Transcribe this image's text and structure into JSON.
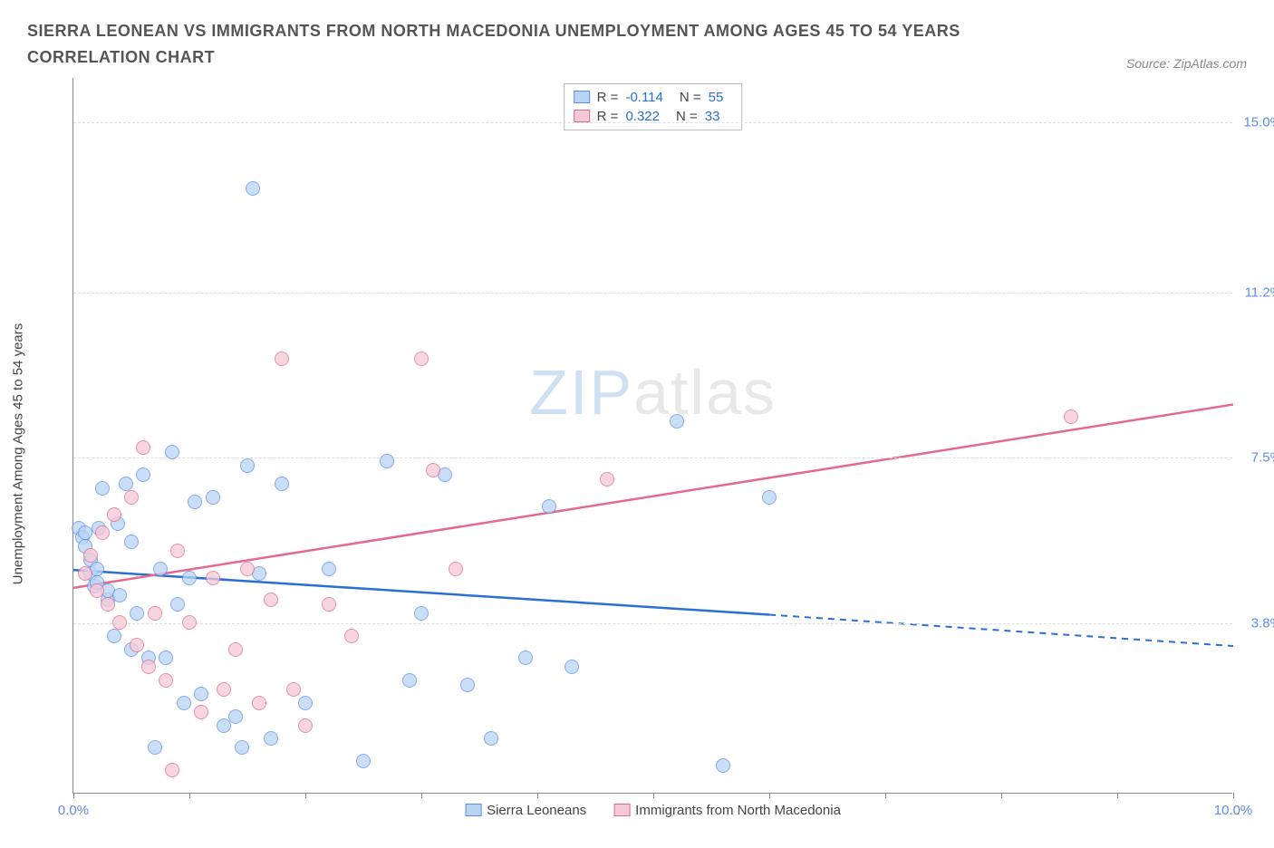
{
  "title": "SIERRA LEONEAN VS IMMIGRANTS FROM NORTH MACEDONIA UNEMPLOYMENT AMONG AGES 45 TO 54 YEARS CORRELATION CHART",
  "source": "Source: ZipAtlas.com",
  "ylabel": "Unemployment Among Ages 45 to 54 years",
  "watermark": {
    "a": "ZIP",
    "b": "atlas"
  },
  "chart": {
    "type": "scatter",
    "xlim": [
      0,
      10
    ],
    "ylim": [
      0,
      16
    ],
    "x_ticks": [
      0,
      1,
      2,
      3,
      4,
      5,
      6,
      7,
      8,
      9,
      10
    ],
    "x_tick_labels": {
      "0": "0.0%",
      "10": "10.0%"
    },
    "y_ticks": [
      3.8,
      7.5,
      11.2,
      15.0
    ],
    "y_tick_labels": [
      "3.8%",
      "7.5%",
      "11.2%",
      "15.0%"
    ],
    "grid_color": "#dddddd",
    "axis_color": "#888888",
    "tick_label_color": "#5b8def",
    "background_color": "#ffffff",
    "series": [
      {
        "name": "Sierra Leoneans",
        "fill": "#b9d4f3",
        "stroke": "#5b8def",
        "R": "-0.114",
        "N": "55",
        "trend": {
          "x1": 0,
          "y1": 5.0,
          "x2": 6.0,
          "y2": 4.0,
          "ext_x2": 10.0,
          "ext_y2": 3.3,
          "color": "#2a6fd6",
          "dash_ext": true
        },
        "points": [
          [
            0.05,
            5.9
          ],
          [
            0.08,
            5.7
          ],
          [
            0.1,
            5.5
          ],
          [
            0.1,
            5.8
          ],
          [
            0.15,
            4.9
          ],
          [
            0.15,
            5.2
          ],
          [
            0.18,
            4.6
          ],
          [
            0.2,
            4.7
          ],
          [
            0.2,
            5.0
          ],
          [
            0.22,
            5.9
          ],
          [
            0.25,
            6.8
          ],
          [
            0.3,
            4.3
          ],
          [
            0.3,
            4.5
          ],
          [
            0.35,
            3.5
          ],
          [
            0.38,
            6.0
          ],
          [
            0.4,
            4.4
          ],
          [
            0.45,
            6.9
          ],
          [
            0.5,
            3.2
          ],
          [
            0.5,
            5.6
          ],
          [
            0.55,
            4.0
          ],
          [
            0.6,
            7.1
          ],
          [
            0.65,
            3.0
          ],
          [
            0.7,
            1.0
          ],
          [
            0.75,
            5.0
          ],
          [
            0.8,
            3.0
          ],
          [
            0.85,
            7.6
          ],
          [
            0.9,
            4.2
          ],
          [
            0.95,
            2.0
          ],
          [
            1.0,
            4.8
          ],
          [
            1.05,
            6.5
          ],
          [
            1.1,
            2.2
          ],
          [
            1.2,
            6.6
          ],
          [
            1.3,
            1.5
          ],
          [
            1.4,
            1.7
          ],
          [
            1.45,
            1.0
          ],
          [
            1.5,
            7.3
          ],
          [
            1.55,
            13.5
          ],
          [
            1.6,
            4.9
          ],
          [
            1.7,
            1.2
          ],
          [
            1.8,
            6.9
          ],
          [
            2.0,
            2.0
          ],
          [
            2.2,
            5.0
          ],
          [
            2.5,
            0.7
          ],
          [
            2.7,
            7.4
          ],
          [
            2.9,
            2.5
          ],
          [
            3.0,
            4.0
          ],
          [
            3.2,
            7.1
          ],
          [
            3.4,
            2.4
          ],
          [
            3.6,
            1.2
          ],
          [
            3.9,
            3.0
          ],
          [
            4.1,
            6.4
          ],
          [
            4.3,
            2.8
          ],
          [
            5.2,
            8.3
          ],
          [
            5.6,
            0.6
          ],
          [
            6.0,
            6.6
          ]
        ]
      },
      {
        "name": "Immigrants from North Macedonia",
        "fill": "#f6c9d5",
        "stroke": "#e36a8e",
        "R": "0.322",
        "N": "33",
        "trend": {
          "x1": 0,
          "y1": 4.6,
          "x2": 10.0,
          "y2": 8.7,
          "color": "#e36a8e",
          "dash_ext": false
        },
        "points": [
          [
            0.1,
            4.9
          ],
          [
            0.15,
            5.3
          ],
          [
            0.2,
            4.5
          ],
          [
            0.25,
            5.8
          ],
          [
            0.3,
            4.2
          ],
          [
            0.35,
            6.2
          ],
          [
            0.4,
            3.8
          ],
          [
            0.5,
            6.6
          ],
          [
            0.55,
            3.3
          ],
          [
            0.6,
            7.7
          ],
          [
            0.65,
            2.8
          ],
          [
            0.7,
            4.0
          ],
          [
            0.8,
            2.5
          ],
          [
            0.85,
            0.5
          ],
          [
            0.9,
            5.4
          ],
          [
            1.0,
            3.8
          ],
          [
            1.1,
            1.8
          ],
          [
            1.2,
            4.8
          ],
          [
            1.3,
            2.3
          ],
          [
            1.4,
            3.2
          ],
          [
            1.5,
            5.0
          ],
          [
            1.6,
            2.0
          ],
          [
            1.7,
            4.3
          ],
          [
            1.8,
            9.7
          ],
          [
            1.9,
            2.3
          ],
          [
            2.0,
            1.5
          ],
          [
            2.2,
            4.2
          ],
          [
            2.4,
            3.5
          ],
          [
            3.0,
            9.7
          ],
          [
            3.1,
            7.2
          ],
          [
            3.3,
            5.0
          ],
          [
            4.6,
            7.0
          ],
          [
            8.6,
            8.4
          ]
        ]
      }
    ],
    "stats_box": {
      "rows": [
        {
          "swatch_fill": "#b9d4f3",
          "swatch_stroke": "#5b8def",
          "r": "-0.114",
          "n": "55"
        },
        {
          "swatch_fill": "#f6c9d5",
          "swatch_stroke": "#e36a8e",
          "r": "0.322",
          "n": "33"
        }
      ],
      "r_label": "R =",
      "n_label": "N ="
    },
    "legend": [
      {
        "swatch_fill": "#b9d4f3",
        "swatch_stroke": "#5b8def",
        "label": "Sierra Leoneans"
      },
      {
        "swatch_fill": "#f6c9d5",
        "swatch_stroke": "#e36a8e",
        "label": "Immigrants from North Macedonia"
      }
    ]
  }
}
